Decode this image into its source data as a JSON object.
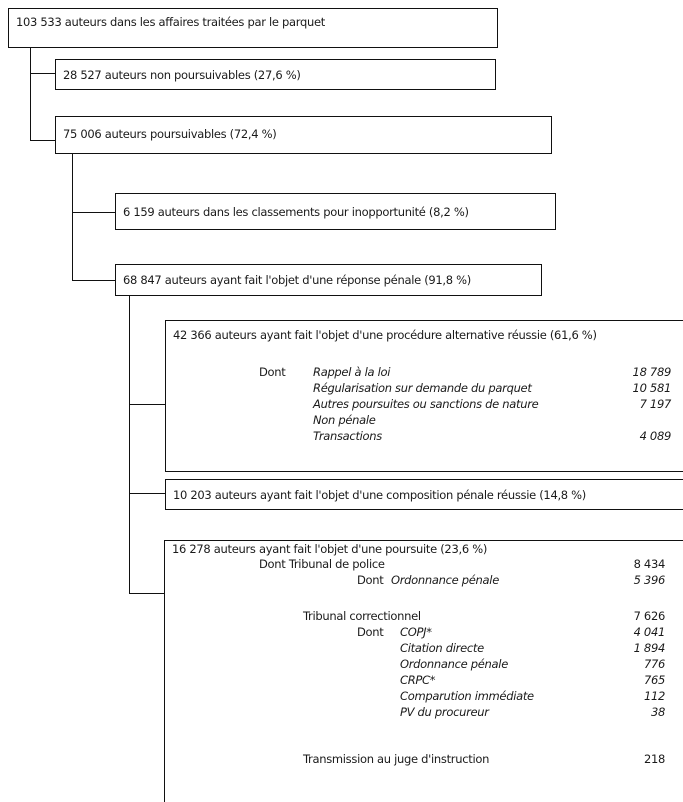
{
  "root": "103 533 auteurs dans les affaires traitées par le parquet",
  "non_poursuivables": "28 527 auteurs non poursuivables (27,6 %)",
  "poursuivables": "75 006 auteurs poursuivables (72,4 %)",
  "inopportunite": "6 159 auteurs dans les classements pour inopportunité (8,2 %)",
  "reponse_penale": "68 847 auteurs ayant fait l'objet d'une réponse pénale (91,8 %)",
  "alternative": {
    "title": "42 366 auteurs ayant fait l'objet d'une procédure alternative réussie (61,6 %)",
    "dont": "Dont",
    "items": [
      {
        "label": "Rappel à la loi",
        "value": "18 789"
      },
      {
        "label": "Régularisation sur demande du parquet",
        "value": "10 581"
      },
      {
        "label": "Autres poursuites ou sanctions de nature",
        "value": "7 197"
      },
      {
        "label": "Non pénale",
        "value": ""
      },
      {
        "label": "Transactions",
        "value": "4 089"
      }
    ]
  },
  "composition": "10 203 auteurs ayant fait l'objet d'une composition pénale réussie (14,8 %)",
  "poursuite": {
    "title": "16 278 auteurs ayant fait l'objet d'une poursuite (23,6 %)",
    "tp_label": "Dont Tribunal de police",
    "tp_value": "8 434",
    "tp_dont": "Dont",
    "tp_ordonnance": "Ordonnance pénale",
    "tp_ordonnance_value": "5 396",
    "tc_label": "Tribunal correctionnel",
    "tc_value": "7 626",
    "tc_dont": "Dont",
    "tc_items": [
      {
        "label": "COPJ*",
        "value": "4 041"
      },
      {
        "label": "Citation directe",
        "value": "1 894"
      },
      {
        "label": "Ordonnance pénale",
        "value": "776"
      },
      {
        "label": "CRPC*",
        "value": "765"
      },
      {
        "label": "Comparution immédiate",
        "value": "112"
      },
      {
        "label": "PV du procureur",
        "value": "38"
      }
    ],
    "ji_label": "Transmission au juge d'instruction",
    "ji_value": "218"
  }
}
